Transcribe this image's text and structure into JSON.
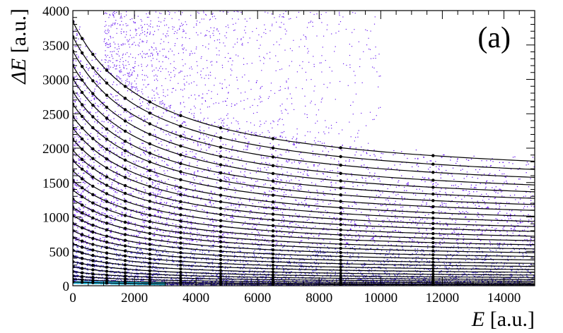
{
  "chart_data": {
    "type": "scatter",
    "panel_label": "(a)",
    "xlabel": {
      "symbol": "E",
      "unit": " [a.u.]"
    },
    "ylabel": {
      "symbol": "ΔE",
      "unit": " [a.u.]"
    },
    "xlim": [
      0,
      15000
    ],
    "ylim": [
      0,
      4000
    ],
    "xticks": [
      0,
      2000,
      4000,
      6000,
      8000,
      10000,
      12000,
      14000
    ],
    "yticks": [
      0,
      500,
      1000,
      1500,
      2000,
      2500,
      3000,
      3500,
      4000
    ],
    "grid": false,
    "legend": "none",
    "point_color": "#6a1cf0",
    "point_color_dense": "#3f2bd0",
    "low_band_color": "#1fb7d8",
    "line_color": "#000000",
    "curve_marker_x": [
      0,
      300,
      650,
      1100,
      1700,
      2500,
      3500,
      4800,
      6500,
      8700,
      11700
    ],
    "curves": [
      {
        "y0": 3840,
        "y_end": 1810
      },
      {
        "y0": 3620,
        "y_end": 1690
      },
      {
        "y0": 3410,
        "y_end": 1575
      },
      {
        "y0": 3200,
        "y_end": 1465
      },
      {
        "y0": 3010,
        "y_end": 1365
      },
      {
        "y0": 2820,
        "y_end": 1270
      },
      {
        "y0": 2640,
        "y_end": 1180
      },
      {
        "y0": 2460,
        "y_end": 1095
      },
      {
        "y0": 2290,
        "y_end": 1010
      },
      {
        "y0": 2130,
        "y_end": 935
      },
      {
        "y0": 1970,
        "y_end": 860
      },
      {
        "y0": 1820,
        "y_end": 790
      },
      {
        "y0": 1670,
        "y_end": 720
      },
      {
        "y0": 1530,
        "y_end": 655
      },
      {
        "y0": 1390,
        "y_end": 595
      },
      {
        "y0": 1260,
        "y_end": 535
      },
      {
        "y0": 1140,
        "y_end": 480
      },
      {
        "y0": 1020,
        "y_end": 425
      },
      {
        "y0": 905,
        "y_end": 375
      },
      {
        "y0": 800,
        "y_end": 325
      },
      {
        "y0": 700,
        "y_end": 280
      },
      {
        "y0": 605,
        "y_end": 235
      },
      {
        "y0": 515,
        "y_end": 195
      },
      {
        "y0": 430,
        "y_end": 155
      },
      {
        "y0": 350,
        "y_end": 120
      },
      {
        "y0": 275,
        "y_end": 90
      },
      {
        "y0": 205,
        "y_end": 65
      },
      {
        "y0": 145,
        "y_end": 42
      },
      {
        "y0": 95,
        "y_end": 25
      },
      {
        "y0": 55,
        "y_end": 12
      }
    ]
  }
}
